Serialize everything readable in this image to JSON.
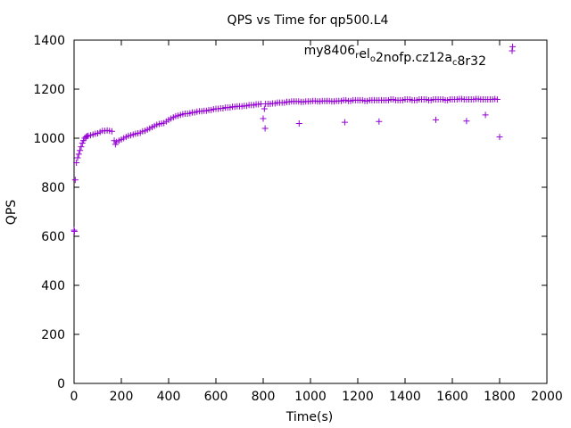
{
  "chart_data": {
    "type": "scatter",
    "title": "QPS vs Time for qp500.L4",
    "xlabel": "Time(s)",
    "ylabel": "QPS",
    "xlim": [
      0,
      2000
    ],
    "ylim": [
      0,
      1400
    ],
    "xticks": [
      0,
      200,
      400,
      600,
      800,
      1000,
      1200,
      1400,
      1600,
      1800,
      2000
    ],
    "yticks": [
      0,
      200,
      400,
      600,
      800,
      1000,
      1200,
      1400
    ],
    "grid": false,
    "legend_position": "top-right",
    "marker_color": "#9400d3",
    "series": [
      {
        "legend_parts": [
          {
            "text": "my8406",
            "sub": false
          },
          {
            "text": "r",
            "sub": true
          },
          {
            "text": "el",
            "sub": false
          },
          {
            "text": "o",
            "sub": true
          },
          {
            "text": "2nofp.cz12a",
            "sub": false
          },
          {
            "text": "c",
            "sub": true
          },
          {
            "text": "8r32",
            "sub": false
          }
        ],
        "x": [
          0,
          5,
          10,
          15,
          20,
          25,
          30,
          35,
          40,
          45,
          50,
          55,
          60,
          70,
          80,
          90,
          100,
          110,
          120,
          130,
          140,
          150,
          160,
          170,
          175,
          180,
          190,
          200,
          210,
          220,
          230,
          240,
          250,
          260,
          270,
          280,
          290,
          300,
          310,
          320,
          330,
          340,
          350,
          360,
          370,
          380,
          390,
          400,
          410,
          420,
          430,
          440,
          450,
          460,
          470,
          480,
          490,
          500,
          510,
          520,
          530,
          540,
          550,
          560,
          570,
          580,
          590,
          600,
          610,
          620,
          630,
          640,
          650,
          660,
          670,
          680,
          690,
          700,
          710,
          720,
          730,
          740,
          750,
          760,
          770,
          780,
          790,
          800,
          805,
          810,
          820,
          830,
          840,
          850,
          860,
          870,
          880,
          890,
          900,
          910,
          920,
          930,
          940,
          950,
          960,
          970,
          980,
          990,
          1000,
          1010,
          1020,
          1030,
          1040,
          1050,
          1060,
          1070,
          1080,
          1090,
          1100,
          1110,
          1120,
          1130,
          1140,
          1150,
          1160,
          1170,
          1180,
          1190,
          1200,
          1210,
          1220,
          1230,
          1240,
          1250,
          1260,
          1270,
          1280,
          1290,
          1300,
          1310,
          1320,
          1330,
          1340,
          1350,
          1360,
          1370,
          1380,
          1390,
          1400,
          1410,
          1420,
          1430,
          1440,
          1450,
          1460,
          1470,
          1480,
          1490,
          1500,
          1510,
          1520,
          1530,
          1540,
          1550,
          1560,
          1570,
          1580,
          1590,
          1600,
          1610,
          1620,
          1630,
          1640,
          1650,
          1660,
          1670,
          1680,
          1690,
          1700,
          1710,
          1720,
          1730,
          1740,
          1750,
          1760,
          1770,
          1780,
          1790,
          1800,
          1855,
          1.5,
          808,
          952,
          1145,
          1290,
          1530,
          1660,
          1740
        ],
        "y": [
          625,
          830,
          900,
          920,
          935,
          950,
          965,
          980,
          990,
          1000,
          1005,
          1008,
          1010,
          1012,
          1015,
          1018,
          1020,
          1025,
          1030,
          1030,
          1032,
          1030,
          1028,
          990,
          975,
          985,
          990,
          995,
          1000,
          1005,
          1010,
          1012,
          1015,
          1018,
          1020,
          1022,
          1028,
          1030,
          1035,
          1040,
          1045,
          1050,
          1055,
          1058,
          1060,
          1062,
          1068,
          1075,
          1080,
          1085,
          1090,
          1092,
          1095,
          1098,
          1100,
          1100,
          1102,
          1105,
          1105,
          1108,
          1110,
          1110,
          1112,
          1112,
          1115,
          1115,
          1118,
          1120,
          1120,
          1122,
          1122,
          1125,
          1125,
          1125,
          1128,
          1128,
          1130,
          1130,
          1130,
          1132,
          1132,
          1135,
          1135,
          1135,
          1138,
          1138,
          1140,
          1080,
          1120,
          1140,
          1140,
          1140,
          1142,
          1142,
          1145,
          1145,
          1145,
          1145,
          1148,
          1148,
          1150,
          1150,
          1150,
          1150,
          1148,
          1148,
          1150,
          1150,
          1150,
          1152,
          1152,
          1150,
          1150,
          1152,
          1152,
          1152,
          1152,
          1150,
          1150,
          1152,
          1152,
          1152,
          1155,
          1155,
          1152,
          1152,
          1155,
          1155,
          1155,
          1155,
          1155,
          1152,
          1152,
          1155,
          1155,
          1155,
          1155,
          1155,
          1155,
          1155,
          1155,
          1155,
          1158,
          1158,
          1155,
          1155,
          1155,
          1155,
          1158,
          1158,
          1158,
          1155,
          1155,
          1155,
          1158,
          1158,
          1158,
          1158,
          1155,
          1155,
          1158,
          1158,
          1158,
          1158,
          1158,
          1155,
          1155,
          1158,
          1158,
          1158,
          1158,
          1160,
          1160,
          1158,
          1158,
          1158,
          1158,
          1158,
          1160,
          1160,
          1158,
          1158,
          1158,
          1158,
          1158,
          1158,
          1160,
          1158,
          1005,
          1373,
          620,
          1040,
          1060,
          1065,
          1068,
          1075,
          1070,
          1095
        ]
      }
    ]
  }
}
